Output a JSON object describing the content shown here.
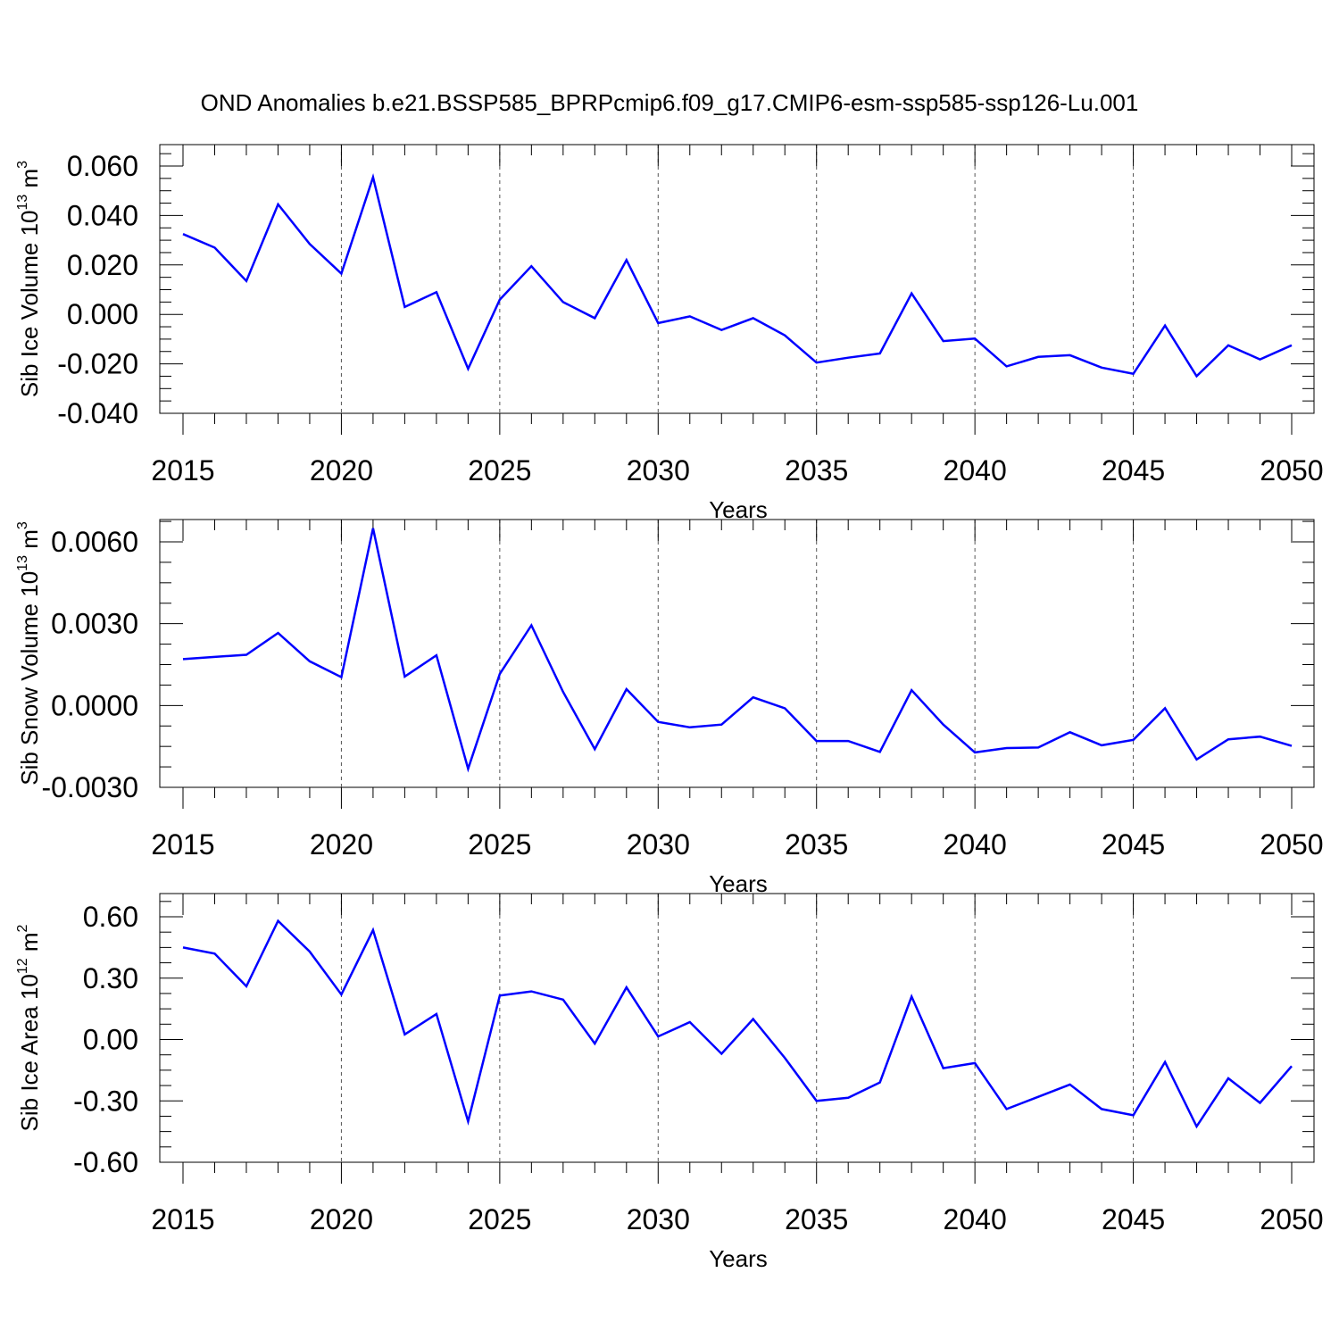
{
  "title": "OND Anomalies b.e21.BSSP585_BPRPcmip6.f09_g17.CMIP6-esm-ssp585-ssp126-Lu.001",
  "colors": {
    "series": "#0000ff",
    "axes": "#000000",
    "grid": "#000000"
  },
  "chart_data": [
    {
      "type": "line",
      "ylabel": "Sib Ice Volume 10",
      "ylabel_exp": "13",
      "ylabel_unit": "m",
      "ylabel_unit_exp": "3",
      "xlabel": "Years",
      "xlim": [
        2015,
        2050
      ],
      "ylim": [
        -0.04,
        0.063
      ],
      "yticks": [
        0.06,
        0.04,
        0.02,
        0.0,
        -0.02,
        -0.04
      ],
      "ytick_labels": [
        "0.060",
        "0.040",
        "0.020",
        "0.000",
        "-0.020",
        "-0.040"
      ],
      "xticks": [
        2015,
        2020,
        2025,
        2030,
        2035,
        2040,
        2045,
        2050
      ],
      "xtick_labels": [
        "2015",
        "2020",
        "2025",
        "2030",
        "2035",
        "2040",
        "2045",
        "2050"
      ],
      "grid": "vertical dashed at labeled years",
      "x": [
        2015,
        2016,
        2017,
        2018,
        2019,
        2020,
        2021,
        2022,
        2023,
        2024,
        2025,
        2026,
        2027,
        2028,
        2029,
        2030,
        2031,
        2032,
        2033,
        2034,
        2035,
        2036,
        2037,
        2038,
        2039,
        2040,
        2041,
        2042,
        2043,
        2044,
        2045,
        2046,
        2047,
        2048,
        2049,
        2050
      ],
      "values": [
        0.0325,
        0.027,
        0.0135,
        0.0445,
        0.0285,
        0.0165,
        0.0555,
        0.003,
        0.009,
        -0.022,
        0.006,
        0.0195,
        0.005,
        -0.0015,
        0.022,
        -0.0035,
        -0.0008,
        -0.0063,
        -0.0015,
        -0.0085,
        -0.0195,
        -0.0175,
        -0.0158,
        0.0085,
        -0.0108,
        -0.0098,
        -0.021,
        -0.0172,
        -0.0165,
        -0.0215,
        -0.024,
        -0.0045,
        -0.025,
        -0.0125,
        -0.0182,
        -0.0125
      ]
    },
    {
      "type": "line",
      "ylabel": "Sib Snow Volume 10",
      "ylabel_exp": "13",
      "ylabel_unit": "m",
      "ylabel_unit_exp": "3",
      "xlabel": "Years",
      "xlim": [
        2015,
        2050
      ],
      "ylim": [
        -0.004,
        0.008
      ],
      "yticks": [
        0.006,
        0.003,
        0.0,
        -0.003
      ],
      "ytick_labels": [
        "0.0060",
        "0.0030",
        "0.0000",
        "-0.0030"
      ],
      "xticks": [
        2015,
        2020,
        2025,
        2030,
        2035,
        2040,
        2045,
        2050
      ],
      "xtick_labels": [
        "2015",
        "2020",
        "2025",
        "2030",
        "2035",
        "2040",
        "2045",
        "2050"
      ],
      "grid": "vertical dashed at labeled years",
      "x": [
        2015,
        2016,
        2017,
        2018,
        2019,
        2020,
        2021,
        2022,
        2023,
        2024,
        2025,
        2026,
        2027,
        2028,
        2029,
        2030,
        2031,
        2032,
        2033,
        2034,
        2035,
        2036,
        2037,
        2038,
        2039,
        2040,
        2041,
        2042,
        2043,
        2044,
        2045,
        2046,
        2047,
        2048,
        2049,
        2050
      ],
      "values": [
        0.0017,
        0.00178,
        0.00186,
        0.00266,
        0.00162,
        0.00104,
        0.0065,
        0.00106,
        0.00184,
        -0.00232,
        0.00116,
        0.00294,
        0.0005,
        -0.0016,
        0.0006,
        -0.0006,
        -0.0008,
        -0.0007,
        0.0003,
        -0.0001,
        -0.0013,
        -0.0013,
        -0.0017,
        0.00056,
        -0.0007,
        -0.00172,
        -0.00156,
        -0.00154,
        -0.00098,
        -0.00146,
        -0.00126,
        -0.0001,
        -0.00198,
        -0.00124,
        -0.00114,
        -0.00148
      ]
    },
    {
      "type": "line",
      "ylabel": "Sib Ice Area 10",
      "ylabel_exp": "12",
      "ylabel_unit": "m",
      "ylabel_unit_exp": "2",
      "xlabel": "Years",
      "xlim": [
        2015,
        2050
      ],
      "ylim": [
        -0.6,
        0.6
      ],
      "yticks": [
        0.6,
        0.3,
        0.0,
        -0.3,
        -0.6
      ],
      "ytick_labels": [
        "0.60",
        "0.30",
        "0.00",
        "-0.30",
        "-0.60"
      ],
      "xticks": [
        2015,
        2020,
        2025,
        2030,
        2035,
        2040,
        2045,
        2050
      ],
      "xtick_labels": [
        "2015",
        "2020",
        "2025",
        "2030",
        "2035",
        "2040",
        "2045",
        "2050"
      ],
      "grid": "vertical dashed at labeled years",
      "x": [
        2015,
        2016,
        2017,
        2018,
        2019,
        2020,
        2021,
        2022,
        2023,
        2024,
        2025,
        2026,
        2027,
        2028,
        2029,
        2030,
        2031,
        2032,
        2033,
        2034,
        2035,
        2036,
        2037,
        2038,
        2039,
        2040,
        2041,
        2042,
        2043,
        2044,
        2045,
        2046,
        2047,
        2048,
        2049,
        2050
      ],
      "values": [
        0.45,
        0.42,
        0.26,
        0.58,
        0.43,
        0.22,
        0.535,
        0.025,
        0.125,
        -0.4,
        0.215,
        0.235,
        0.195,
        -0.02,
        0.255,
        0.015,
        0.085,
        -0.07,
        0.1,
        -0.09,
        -0.3,
        -0.285,
        -0.21,
        0.21,
        -0.14,
        -0.115,
        -0.34,
        -0.28,
        -0.22,
        -0.34,
        -0.37,
        -0.11,
        -0.425,
        -0.19,
        -0.31,
        -0.13
      ]
    }
  ]
}
